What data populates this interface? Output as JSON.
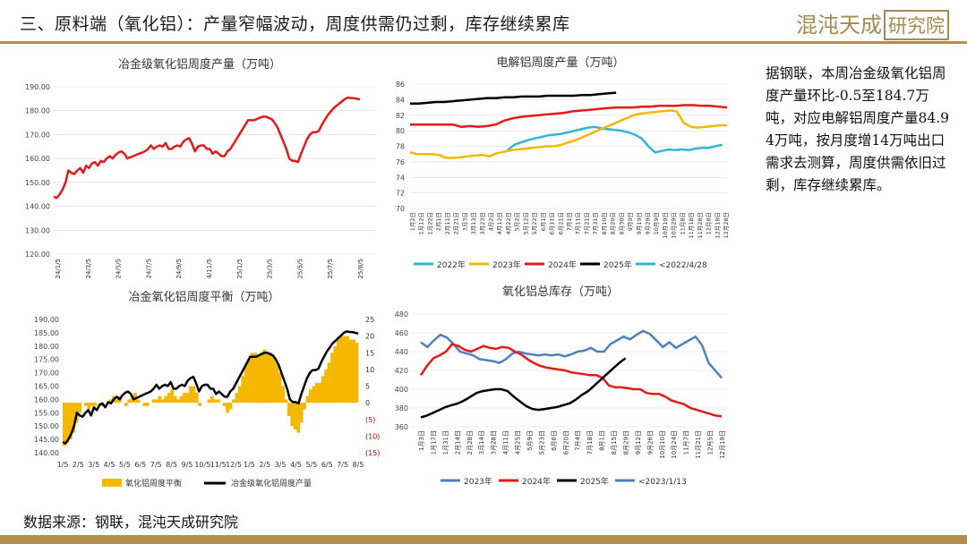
{
  "header": {
    "title": "三、原料端（氧化铝）：产量窄幅波动，周度供需仍过剩，库存继续累库"
  },
  "logo": {
    "text_a": "混沌天成",
    "text_b": "研究院"
  },
  "side_text": "据钢联，本周冶金级氧化铝周度产量环比-0.5至184.7万吨，对应电解铝周度产量84.94万吨，按月度增14万吨出口需求去测算，周度供需依旧过剩，库存继续累库。",
  "source": "数据来源：钢联，混沌天成研究院",
  "colors": {
    "gold": "#b08d4a",
    "red": "#e31a1c",
    "black": "#000000",
    "yellow": "#f5b800",
    "blue": "#4f81bd",
    "cyan": "#33b5d6",
    "grid": "#d9d9d9"
  },
  "chart_data": [
    {
      "type": "line",
      "title": "冶金级氧化铝周度产量（万吨）",
      "ylim": [
        120,
        190
      ],
      "yticks": [
        "120.00",
        "130.00",
        "140.00",
        "150.00",
        "160.00",
        "170.00",
        "180.00",
        "190.00"
      ],
      "xticks": [
        "2024/1/5",
        "2024/3/5",
        "2024/5/5",
        "2024/7/5",
        "2024/9/5",
        "2024/11/5",
        "2025/1/5",
        "2025/3/5",
        "2025/5/5",
        "2025/7/5",
        "2025/8/5"
      ],
      "series": [
        {
          "color": "#e31a1c",
          "values": [
            144,
            143.5,
            145,
            147,
            150,
            155,
            154,
            153.5,
            155,
            156,
            154,
            157,
            156,
            158,
            158.5,
            157,
            159,
            158.5,
            160,
            161,
            160,
            161.5,
            162.5,
            163,
            162,
            160,
            160.5,
            161,
            161.5,
            162,
            162.5,
            163,
            164,
            165.5,
            164,
            165,
            165.5,
            165,
            166.5,
            164,
            164,
            165,
            165.5,
            165,
            167,
            168,
            168.5,
            166,
            163,
            165,
            165.5,
            165.5,
            164,
            164,
            162,
            163,
            162,
            161,
            161,
            163,
            164,
            166,
            168,
            170,
            172,
            174,
            176,
            176,
            176,
            176.5,
            177,
            177.5,
            177.5,
            177,
            176.5,
            175,
            173,
            170,
            167,
            164,
            160,
            159,
            159,
            158.5,
            162,
            165,
            168,
            170,
            171,
            171,
            171.5,
            174,
            176,
            178,
            179.5,
            181,
            182,
            183,
            184,
            185,
            185.5,
            185.3,
            185.2,
            185,
            184.7
          ]
        }
      ]
    },
    {
      "type": "line",
      "title": "电解铝周度产量（万吨）",
      "ylim": [
        70,
        86
      ],
      "yticks": [
        "70",
        "72",
        "74",
        "76",
        "78",
        "80",
        "82",
        "84",
        "86"
      ],
      "xticks": [
        "1月2日",
        "1月12日",
        "1月22日",
        "2月1日",
        "2月11日",
        "2月21日",
        "3月3日",
        "3月13日",
        "3月23日",
        "4月2日",
        "4月12日",
        "4月22日",
        "5月2日",
        "5月12日",
        "5月22日",
        "6月1日",
        "6月11日",
        "6月21日",
        "7月1日",
        "7月11日",
        "7月21日",
        "7月31日",
        "8月10日",
        "8月20日",
        "8月30日",
        "9月9日",
        "9月19日",
        "9月29日",
        "10月9日",
        "10月19日",
        "10月29日",
        "11月8日",
        "11月18日",
        "11月28日",
        "12月8日",
        "12月18日",
        "12月28日"
      ],
      "series": [
        {
          "name": "2022年",
          "color": "#33b5d6",
          "values": [
            77.5,
            78.2,
            78.5,
            78.8,
            79,
            79.2,
            79.4,
            79.5,
            79.6,
            79.8,
            80,
            80.2,
            80.4,
            80.5,
            80.3,
            80.2,
            80.1,
            80,
            79.8,
            79.5,
            79,
            78,
            77.2,
            77.4,
            77.6,
            77.5,
            77.6,
            77.5,
            77.7,
            77.8,
            77.8,
            78,
            78.2
          ]
        },
        {
          "name": "2023年",
          "color": "#f5b800",
          "values": [
            77.2,
            77,
            77,
            77,
            76.9,
            76.5,
            76.5,
            76.6,
            76.7,
            76.8,
            76.9,
            76.7,
            77.1,
            77.3,
            77.5,
            77.6,
            77.7,
            77.8,
            77.9,
            78,
            78,
            78.2,
            78.5,
            78.8,
            79.2,
            79.6,
            80,
            80.4,
            80.8,
            81.2,
            81.6,
            82,
            82.2,
            82.3,
            82.4,
            82.5,
            82.6,
            82.5,
            81,
            80.5,
            80.4,
            80.5,
            80.6,
            80.7,
            80.7
          ]
        },
        {
          "name": "2024年",
          "color": "#e31a1c",
          "values": [
            80.8,
            80.8,
            80.8,
            80.8,
            80.8,
            80.8,
            80.5,
            80.6,
            80.5,
            80.6,
            80.8,
            81.3,
            81.6,
            81.8,
            81.9,
            82,
            82.1,
            82.2,
            82.3,
            82.5,
            82.6,
            82.7,
            82.8,
            82.9,
            83,
            83,
            83,
            83.1,
            83.1,
            83.2,
            83.2,
            83.2,
            83.3,
            83.3,
            83.2,
            83.2,
            83.1,
            83
          ]
        },
        {
          "name": "2025年",
          "color": "#000000",
          "values": [
            83.5,
            83.5,
            83.6,
            83.7,
            83.7,
            83.8,
            83.9,
            84,
            84.1,
            84.2,
            84.2,
            84.3,
            84.3,
            84.4,
            84.4,
            84.4,
            84.5,
            84.5,
            84.5,
            84.5,
            84.6,
            84.6,
            84.7,
            84.8,
            84.9
          ]
        },
        {
          "name": "<2022/4/28",
          "color": "#33b5d6",
          "values": []
        }
      ]
    },
    {
      "type": "bar",
      "title": "冶金氧化铝周度平衡（万吨）",
      "ylim": [
        140,
        190
      ],
      "yticks": [
        "140.00",
        "145.00",
        "150.00",
        "155.00",
        "160.00",
        "165.00",
        "170.00",
        "175.00",
        "180.00",
        "185.00",
        "190.00"
      ],
      "y2lim": [
        -15,
        25
      ],
      "y2ticks": [
        "(15)",
        "(10)",
        "(5)",
        "0",
        "5",
        "10",
        "15",
        "20",
        "25"
      ],
      "xticks": [
        "1/5",
        "2/5",
        "3/5",
        "4/5",
        "5/5",
        "6/5",
        "7/5",
        "8/5",
        "9/5",
        "10/5",
        "11/5",
        "12/5",
        "1/5",
        "2/5",
        "3/5",
        "4/5",
        "5/5",
        "6/5",
        "7/5",
        "8/5"
      ],
      "series": [
        {
          "name": "氧化铝周度平衡",
          "color": "#f5b800",
          "values": [
            -13,
            -12,
            -11,
            -9,
            -6,
            -3,
            0,
            -1,
            -2,
            -1,
            -1,
            0,
            -1,
            0,
            0,
            1,
            2,
            1,
            2,
            0,
            -1,
            1,
            2,
            3,
            1,
            0,
            -1,
            -1,
            0,
            1,
            1,
            2,
            1,
            2,
            3,
            4,
            2,
            1,
            2,
            3,
            3,
            5,
            5,
            3,
            -1,
            0,
            0,
            1,
            2,
            1,
            1,
            0,
            -1,
            -3,
            -2,
            1,
            3,
            5,
            8,
            11,
            13,
            15,
            15,
            14,
            15,
            16,
            15,
            15,
            14,
            12,
            9,
            5,
            1,
            -4,
            -7,
            -8,
            -9,
            -6,
            -2,
            2,
            4,
            5,
            6,
            6,
            8,
            10,
            12,
            15,
            17,
            19,
            20,
            20,
            20,
            19,
            19,
            18
          ]
        },
        {
          "name": "冶金级氧化铝周度产量",
          "color": "#000000",
          "values": [
            144,
            143.5,
            145,
            147,
            150,
            155,
            154,
            153.5,
            155,
            156,
            154,
            157,
            156,
            158,
            158.5,
            157,
            159,
            158.5,
            160,
            161,
            160,
            161.5,
            162.5,
            163,
            162,
            160,
            160.5,
            161,
            161.5,
            162,
            162.5,
            163,
            164,
            165.5,
            164,
            165,
            165.5,
            165,
            166.5,
            164,
            164,
            165,
            165.5,
            165,
            167,
            168,
            168.5,
            166,
            163,
            165,
            165.5,
            165.5,
            164,
            164,
            162,
            163,
            162,
            161,
            161,
            163,
            164,
            166,
            168,
            170,
            172,
            174,
            176,
            176,
            176,
            176.5,
            177,
            177.5,
            177.5,
            177,
            176.5,
            175,
            173,
            170,
            167,
            164,
            160,
            159,
            159,
            158.5,
            162,
            165,
            168,
            170,
            171,
            171,
            171.5,
            174,
            176,
            178,
            179.5,
            181,
            182,
            183,
            184,
            185,
            185.5,
            185.3,
            185.2,
            185,
            184.7
          ]
        }
      ]
    },
    {
      "type": "line",
      "title": "氧化铝总库存（万吨）",
      "ylim": [
        360,
        480
      ],
      "yticks": [
        "360",
        "380",
        "400",
        "420",
        "440",
        "460",
        "480"
      ],
      "xticks": [
        "1月3日",
        "1月17日",
        "1月31日",
        "2月14日",
        "2月28日",
        "3月14日",
        "3月28日",
        "4月11日",
        "4月25日",
        "5月9日",
        "5月23日",
        "6月6日",
        "6月20日",
        "7月4日",
        "7月18日",
        "8月1日",
        "8月15日",
        "8月29日",
        "9月12日",
        "9月26日",
        "10月10日",
        "10月24日",
        "11月7日",
        "11月21日",
        "12月5日",
        "12月19日"
      ],
      "series": [
        {
          "name": "2023年",
          "color": "#4f81bd",
          "values": [
            450,
            445,
            452,
            458,
            455,
            448,
            440,
            438,
            436,
            432,
            431,
            430,
            428,
            432,
            438,
            440,
            438,
            437,
            436,
            437,
            436,
            437,
            435,
            437,
            440,
            441,
            444,
            440,
            440,
            448,
            452,
            456,
            453,
            458,
            462,
            459,
            452,
            445,
            450,
            444,
            448,
            452,
            456,
            447,
            428,
            420,
            412
          ]
        },
        {
          "name": "2024年",
          "color": "#e31a1c",
          "values": [
            415,
            425,
            433,
            436,
            440,
            448,
            446,
            442,
            440,
            443,
            446,
            444,
            443,
            445,
            444,
            440,
            437,
            432,
            428,
            425,
            423,
            422,
            421,
            420,
            418,
            417,
            416,
            415,
            415,
            412,
            404,
            402,
            402,
            401,
            400,
            400,
            396,
            395,
            395,
            392,
            388,
            386,
            384,
            380,
            378,
            376,
            374,
            372,
            371
          ]
        },
        {
          "name": "2025年",
          "color": "#000000",
          "values": [
            370,
            372,
            375,
            378,
            381,
            383,
            385,
            388,
            392,
            396,
            398,
            399,
            400,
            400,
            398,
            392,
            387,
            382,
            379,
            378,
            379,
            380,
            381,
            383,
            385,
            389,
            394,
            398,
            404,
            410,
            416,
            422,
            428,
            433
          ]
        },
        {
          "name": "<2023/1/13",
          "color": "#4f81bd",
          "values": []
        }
      ]
    }
  ]
}
